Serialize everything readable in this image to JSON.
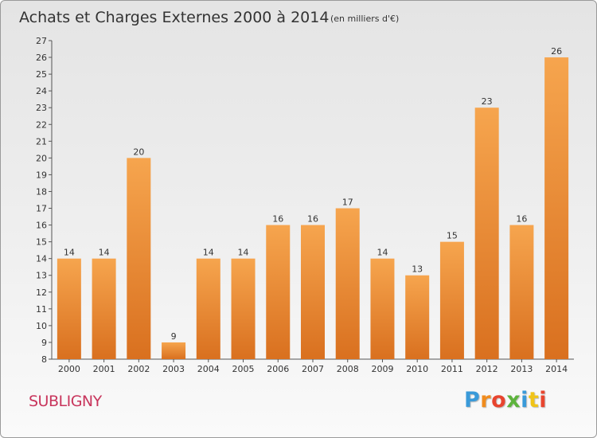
{
  "chart_data": {
    "type": "bar",
    "title": "Achats et Charges Externes 2000 à 2014",
    "subtitle": "(en milliers d'€)",
    "categories": [
      "2000",
      "2001",
      "2002",
      "2003",
      "2004",
      "2005",
      "2006",
      "2007",
      "2008",
      "2009",
      "2010",
      "2011",
      "2012",
      "2013",
      "2014"
    ],
    "values": [
      14,
      14,
      20,
      9,
      14,
      14,
      16,
      16,
      17,
      14,
      13,
      15,
      23,
      16,
      26
    ],
    "ylim": [
      8,
      27
    ],
    "yticks": [
      8,
      9,
      10,
      11,
      12,
      13,
      14,
      15,
      16,
      17,
      18,
      19,
      20,
      21,
      22,
      23,
      24,
      25,
      26,
      27
    ],
    "xlabel": "",
    "ylabel": "",
    "grid": false,
    "colors": {
      "bar_light": "#f6a54e",
      "bar_dark": "#d9701f",
      "axis": "#555555"
    }
  },
  "location": "SUBLIGNY",
  "logo": {
    "letters": [
      "P",
      "r",
      "o",
      "x",
      "i",
      "t",
      "i"
    ],
    "colors": [
      "#3a9ad9",
      "#f08c1e",
      "#e8452f",
      "#5db33c",
      "#3a9ad9",
      "#f0c419",
      "#e8452f"
    ]
  }
}
